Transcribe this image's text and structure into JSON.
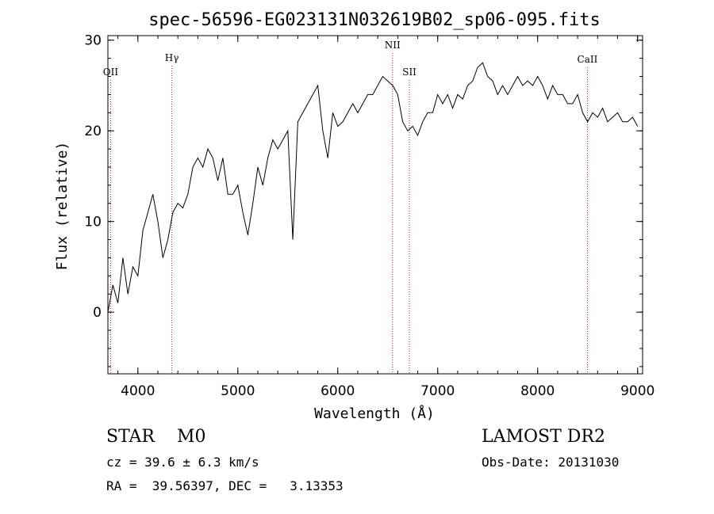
{
  "chart_data": {
    "type": "line",
    "title": "spec-56596-EG023131N032619B02_sp06-095.fits",
    "xlabel": "Wavelength (Å)",
    "ylabel": "Flux (relative)",
    "xlim": [
      3700,
      9050
    ],
    "ylim": [
      -6.8,
      30.5
    ],
    "xticks": [
      4000,
      5000,
      6000,
      7000,
      8000,
      9000
    ],
    "yticks": [
      0,
      10,
      20,
      30
    ],
    "grid": false,
    "line_markers": [
      {
        "label": "OII",
        "wavelength": 3727
      },
      {
        "label": "Hγ",
        "wavelength": 4340
      },
      {
        "label": "NII",
        "wavelength": 6548
      },
      {
        "label": "SII",
        "wavelength": 6717
      },
      {
        "label": "CaII",
        "wavelength": 8498
      }
    ],
    "marker_color": "#aa2222",
    "series": [
      {
        "x": [
          3700,
          3750,
          3800,
          3850,
          3900,
          3950,
          4000,
          4050,
          4100,
          4150,
          4200,
          4250,
          4300,
          4350,
          4400,
          4450,
          4500,
          4550,
          4600,
          4650,
          4700,
          4750,
          4800,
          4850,
          4900,
          4950,
          5000,
          5050,
          5100,
          5150,
          5200,
          5250,
          5300,
          5350,
          5400,
          5450,
          5500,
          5550,
          5600,
          5650,
          5700,
          5750,
          5800,
          5850,
          5900,
          5950,
          6000,
          6050,
          6100,
          6150,
          6200,
          6250,
          6300,
          6350,
          6400,
          6450,
          6500,
          6550,
          6600,
          6650,
          6700,
          6750,
          6800,
          6850,
          6900,
          6950,
          7000,
          7050,
          7100,
          7150,
          7200,
          7250,
          7300,
          7350,
          7400,
          7450,
          7500,
          7550,
          7600,
          7650,
          7700,
          7750,
          7800,
          7850,
          7900,
          7950,
          8000,
          8050,
          8100,
          8150,
          8200,
          8250,
          8300,
          8350,
          8400,
          8450,
          8500,
          8550,
          8600,
          8650,
          8700,
          8750,
          8800,
          8850,
          8900,
          8950,
          9000
        ],
        "values": [
          0,
          3,
          1,
          6,
          2,
          5,
          4,
          9,
          11,
          13,
          10,
          6,
          8,
          11,
          12,
          11.5,
          13,
          16,
          17,
          16,
          18,
          17,
          14.5,
          17,
          13,
          13,
          14,
          11,
          8.5,
          12,
          16,
          14,
          17,
          19,
          18,
          19,
          20,
          8,
          21,
          22,
          23,
          24,
          25,
          20,
          17,
          22,
          20.5,
          21,
          22,
          23,
          22,
          23,
          24,
          24,
          25,
          26,
          25.5,
          25,
          24,
          21,
          20,
          20.5,
          19.5,
          21,
          22,
          22,
          24,
          23,
          24,
          22.5,
          24,
          23.5,
          25,
          25.5,
          27,
          27.5,
          26,
          25.5,
          24,
          25,
          24,
          25,
          26,
          25,
          25.5,
          25,
          26,
          25,
          23.5,
          25,
          24,
          24,
          23,
          23,
          24,
          22,
          21,
          22,
          21.5,
          22.5,
          21,
          21.5,
          22,
          21,
          21,
          21.5,
          20.5
        ]
      }
    ]
  },
  "info": {
    "class_line": "STAR    M0",
    "survey": "LAMOST DR2",
    "cz_line": "cz = 39.6 ± 6.3 km/s",
    "obs_date": "Obs-Date: 20131030",
    "radec_line": "RA =  39.56397, DEC =   3.13353"
  }
}
